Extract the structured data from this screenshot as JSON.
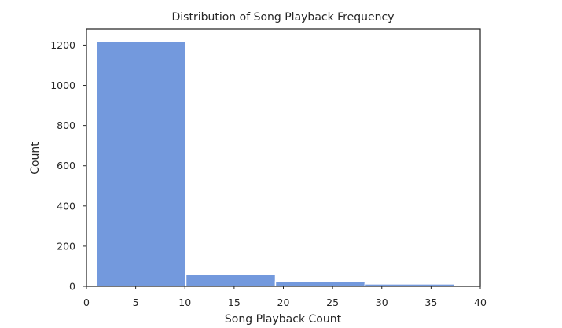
{
  "chart_data": {
    "type": "bar",
    "title": "Distribution of Song Playback Frequency",
    "xlabel": "Song Playback Count",
    "ylabel": "Count",
    "xlim": [
      0,
      40
    ],
    "ylim": [
      0,
      1280
    ],
    "xticks": [
      0,
      5,
      10,
      15,
      20,
      25,
      30,
      35,
      40
    ],
    "yticks": [
      0,
      200,
      400,
      600,
      800,
      1000,
      1200
    ],
    "bin_edges": [
      1,
      10.1,
      19.2,
      28.3,
      37.4
    ],
    "values": [
      1220,
      60,
      24,
      12
    ],
    "grid": false,
    "legend": false,
    "bar_color": "#7399dd"
  }
}
